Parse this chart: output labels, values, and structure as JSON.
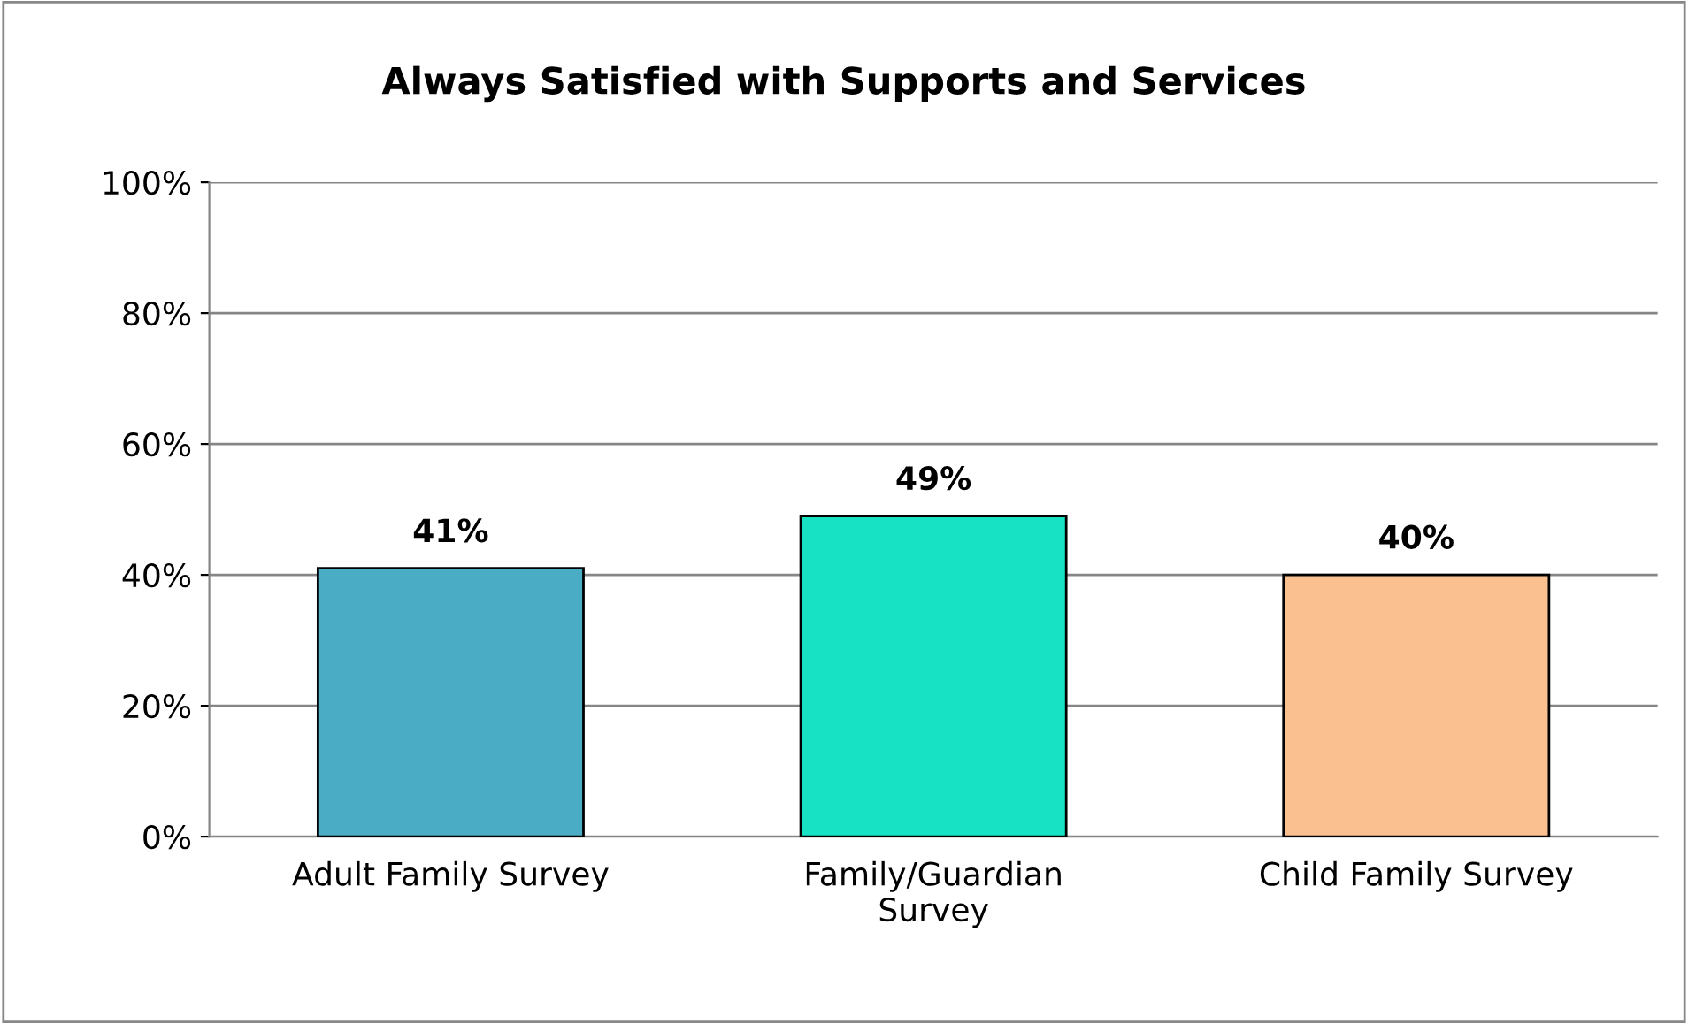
{
  "chart_data": {
    "type": "bar",
    "title": "Always Satisfied with Supports and Services",
    "categories": [
      "Adult Family Survey",
      "Family/Guardian\nSurvey",
      "Child Family Survey"
    ],
    "values": [
      41,
      49,
      40
    ],
    "colors": [
      "#4bacc6",
      "#17e3c4",
      "#fac090"
    ],
    "value_labels": [
      "41%",
      "49%",
      "40%"
    ],
    "ylim": [
      0,
      100
    ],
    "yticks": [
      {
        "value": 0,
        "label": "0%"
      },
      {
        "value": 20,
        "label": "20%"
      },
      {
        "value": 40,
        "label": "40%"
      },
      {
        "value": 60,
        "label": "60%"
      },
      {
        "value": 80,
        "label": "80%"
      },
      {
        "value": 100,
        "label": "100%"
      }
    ],
    "grid": "y",
    "legend": false
  }
}
